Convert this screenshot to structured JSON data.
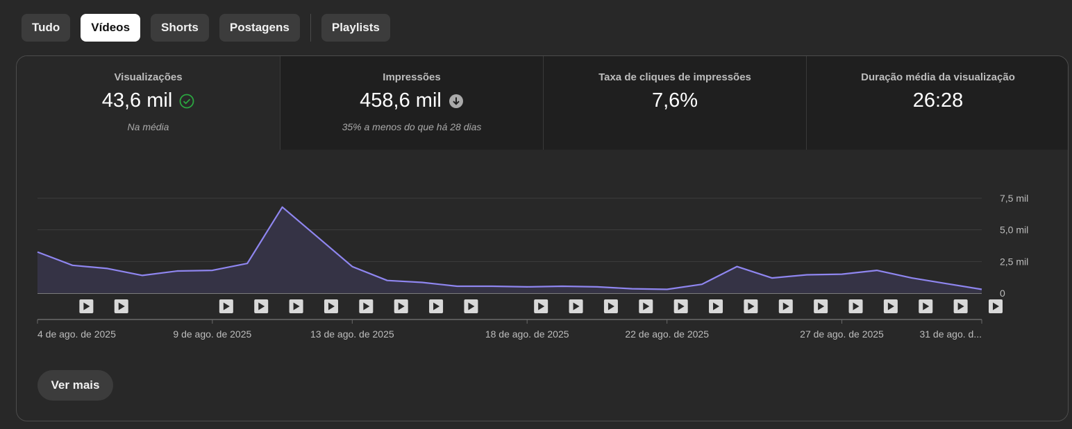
{
  "tabs": [
    {
      "label": "Tudo",
      "active": false
    },
    {
      "label": "Vídeos",
      "active": true
    },
    {
      "label": "Shorts",
      "active": false
    },
    {
      "label": "Postagens",
      "active": false
    },
    {
      "label": "Playlists",
      "active": false
    }
  ],
  "metrics": [
    {
      "label": "Visualizações",
      "value": "43,6 mil",
      "icon": "check-circle-icon",
      "icon_color": "#2ba640",
      "sub": "Na média"
    },
    {
      "label": "Impressões",
      "value": "458,6 mil",
      "icon": "arrow-down-circle-icon",
      "icon_color": "#aaaaaa",
      "sub": "35% a menos do que há 28 dias"
    },
    {
      "label": "Taxa de cliques de impressões",
      "value": "7,6%",
      "sub": ""
    },
    {
      "label": "Duração média da visualização",
      "value": "26:28",
      "sub": ""
    }
  ],
  "chart_data": {
    "type": "area",
    "series": [
      {
        "values": [
          3250,
          2200,
          1950,
          1400,
          1750,
          1800,
          2350,
          6800,
          4450,
          2100,
          1000,
          850,
          550,
          550,
          500,
          550,
          500,
          350,
          300,
          700,
          2100,
          1200,
          1450,
          1500,
          1800,
          1200,
          750,
          300
        ]
      }
    ],
    "x_start": "4 de ago. de 2025",
    "x_end": "31 de ago. de 2025",
    "x_tick_labels": [
      {
        "day_index": 0,
        "label": "4 de ago. de 2025"
      },
      {
        "day_index": 5,
        "label": "9 de ago. de 2025"
      },
      {
        "day_index": 9,
        "label": "13 de ago. de 2025"
      },
      {
        "day_index": 14,
        "label": "18 de ago. de 2025"
      },
      {
        "day_index": 18,
        "label": "22 de ago. de 2025"
      },
      {
        "day_index": 23,
        "label": "27 de ago. de 2025"
      },
      {
        "day_index": 27,
        "label": "31 de ago. d..."
      }
    ],
    "y_ticks": [
      0,
      2500,
      5000,
      7500
    ],
    "y_tick_labels": [
      "0",
      "2,5 mil",
      "5,0 mil",
      "7,5 mil"
    ],
    "ylim": [
      0,
      7500
    ],
    "grid": true,
    "line_color": "#8f86f0",
    "fill_color": "#353345",
    "video_marker_day_indices": [
      1,
      2,
      5,
      6,
      7,
      8,
      9,
      10,
      11,
      12,
      14,
      15,
      16,
      17,
      18,
      19,
      20,
      21,
      22,
      23,
      24,
      25,
      26,
      27
    ]
  },
  "ver_mais_label": "Ver mais"
}
